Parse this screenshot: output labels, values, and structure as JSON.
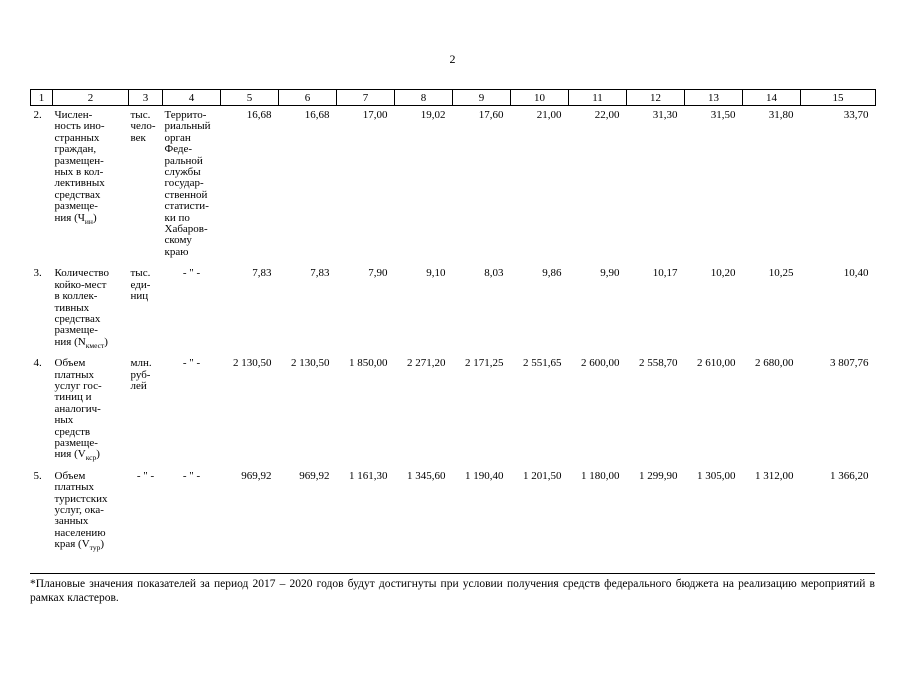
{
  "page": {
    "number": "2"
  },
  "table": {
    "ditto": "- \" -",
    "header_cols": [
      "1",
      "2",
      "3",
      "4",
      "5",
      "6",
      "7",
      "8",
      "9",
      "10",
      "11",
      "12",
      "13",
      "14",
      "15"
    ],
    "rows": [
      {
        "num": "2.",
        "name_lines": [
          "Числен-",
          "ность ино-",
          "странных",
          "граждан,",
          "размещен-",
          "ных в кол-",
          "лективных",
          "средствах",
          "размеще-",
          "ния (Ч~ин~)"
        ],
        "unit": [
          "тыс.",
          "чело-",
          "век"
        ],
        "source": [
          "Террито-",
          "риальный",
          "орган",
          "Феде-",
          "ральной",
          "службы",
          "государ-",
          "ственной",
          "статисти-",
          "ки по",
          "Хабаров-",
          "скому",
          "краю"
        ],
        "values": [
          "16,68",
          "16,68",
          "17,00",
          "19,02",
          "17,60",
          "21,00",
          "22,00",
          "31,30",
          "31,50",
          "31,80",
          "33,70"
        ]
      },
      {
        "num": "3.",
        "name_lines": [
          "Количество",
          "койко-мест",
          "в коллек-",
          "тивных",
          "средствах",
          "размеще-",
          "ния (N~кмест~)"
        ],
        "unit": [
          "тыс.",
          "еди-",
          "ниц"
        ],
        "source": "ditto",
        "values": [
          "7,83",
          "7,83",
          "7,90",
          "9,10",
          "8,03",
          "9,86",
          "9,90",
          "10,17",
          "10,20",
          "10,25",
          "10,40"
        ]
      },
      {
        "num": "4.",
        "name_lines": [
          "Объем",
          "платных",
          "услуг гос-",
          "тиниц и",
          "аналогич-",
          "ных",
          "средств",
          "размеще-",
          "ния (V~кср~)"
        ],
        "unit": [
          "млн.",
          "руб-",
          "лей"
        ],
        "source": "ditto",
        "values": [
          "2 130,50",
          "2 130,50",
          "1 850,00",
          "2 271,20",
          "2 171,25",
          "2 551,65",
          "2 600,00",
          "2 558,70",
          "2 610,00",
          "2 680,00",
          "3 807,76"
        ]
      },
      {
        "num": "5.",
        "name_lines": [
          "Объем",
          "платных",
          "туристских",
          "услуг, ока-",
          "занных",
          "населению",
          "края (V~тур~)"
        ],
        "unit": "ditto",
        "source": "ditto",
        "values": [
          "969,92",
          "969,92",
          "1 161,30",
          "1 345,60",
          "1 190,40",
          "1 201,50",
          "1 180,00",
          "1 299,90",
          "1 305,00",
          "1 312,00",
          "1 366,20"
        ]
      }
    ]
  },
  "footnote": {
    "text": "*Плановые значения показателей за период 2017 – 2020 годов будут достигнуты при условии получения средств федерального бюджета на реализацию мероприятий в рамках кластеров."
  }
}
